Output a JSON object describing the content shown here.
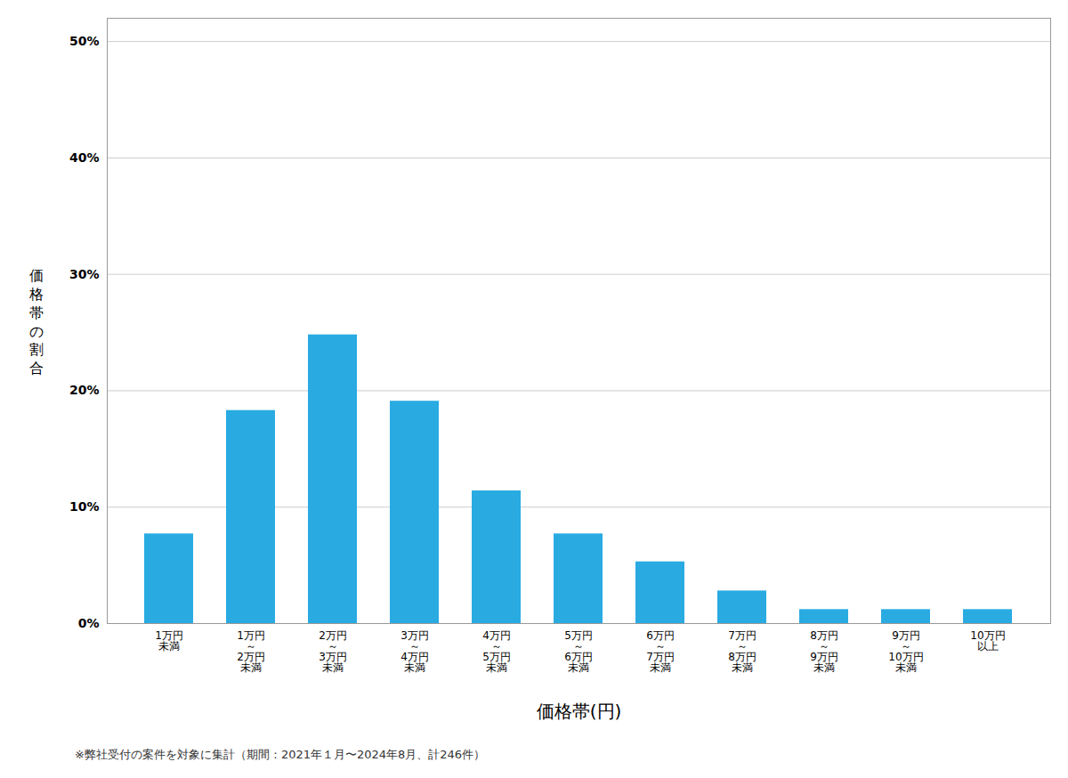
{
  "chart_data": {
    "type": "bar",
    "categories": [
      "1万円\n未満",
      "1万円\n～\n2万円\n未満",
      "2万円\n～\n3万円\n未満",
      "3万円\n～\n4万円\n未満",
      "4万円\n～\n5万円\n未満",
      "5万円\n～\n6万円\n未満",
      "6万円\n～\n7万円\n未満",
      "7万円\n～\n8万円\n未満",
      "8万円\n～\n9万円\n未満",
      "9万円\n～\n10万円\n未満",
      "10万円\n以上"
    ],
    "values": [
      7.7,
      18.3,
      24.8,
      19.1,
      11.4,
      7.7,
      5.3,
      2.8,
      1.2,
      1.2,
      1.2
    ],
    "color": "#29ABE2",
    "xlabel": "価格帯(円)",
    "ylabel": "価\n格\n帯\nの\n割\n合",
    "ylim": [
      0,
      52
    ],
    "yticks": [
      {
        "value": 0,
        "label": "0%"
      },
      {
        "value": 10,
        "label": "10%"
      },
      {
        "value": 20,
        "label": "20%"
      },
      {
        "value": 30,
        "label": "30%"
      },
      {
        "value": 40,
        "label": "40%"
      },
      {
        "value": 50,
        "label": "50%"
      }
    ],
    "grid": true,
    "caption": "※弊社受付の案件を対象に集計（期間：2021年１月〜2024年8月、計246件）"
  }
}
